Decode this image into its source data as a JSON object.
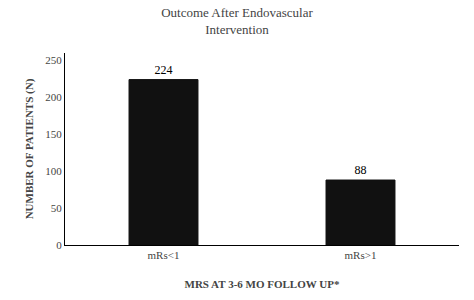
{
  "chart_data": {
    "type": "bar",
    "title": "Outcome After Endovascular\nIntervention",
    "categories": [
      "mRs<1",
      "mRs>1"
    ],
    "values": [
      224,
      88
    ],
    "color": "#111111",
    "xlabel": "MRS AT 3-6 MO FOLLOW UP*",
    "ylabel": "NUMBER OF PATIENTS (N)",
    "ylim": [
      0,
      260
    ],
    "yticks": [
      0,
      50,
      100,
      150,
      200,
      250
    ],
    "data_labels": true,
    "grid": false
  }
}
